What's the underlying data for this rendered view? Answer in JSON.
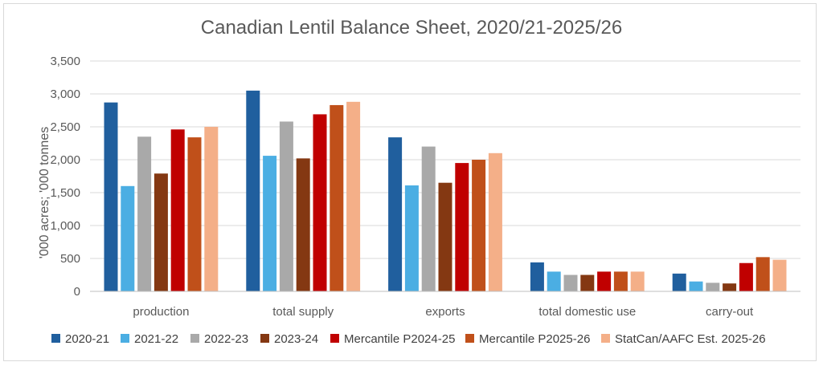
{
  "chart_data": {
    "type": "bar",
    "title": "Canadian Lentil Balance Sheet, 2020/21-2025/26",
    "ylabel": "'000 acres; '000 tonnes",
    "xlabel": "",
    "ylim": [
      0,
      3500
    ],
    "yticks": [
      "0",
      "500",
      "1,000",
      "1,500",
      "2,000",
      "2,500",
      "3,000",
      "3,500"
    ],
    "ytick_values": [
      0,
      500,
      1000,
      1500,
      2000,
      2500,
      3000,
      3500
    ],
    "grid": true,
    "legend_position": "bottom",
    "categories": [
      "production",
      "total supply",
      "exports",
      "total domestic use",
      "carry-out"
    ],
    "series": [
      {
        "name": "2020-21",
        "color": "#205F9E",
        "values": [
          2870,
          3050,
          2340,
          440,
          270
        ]
      },
      {
        "name": "2021-22",
        "color": "#4BAEE3",
        "values": [
          1600,
          2060,
          1610,
          300,
          150
        ]
      },
      {
        "name": "2022-23",
        "color": "#A9A9A9",
        "values": [
          2350,
          2580,
          2200,
          250,
          130
        ]
      },
      {
        "name": "2023-24",
        "color": "#843812",
        "values": [
          1790,
          2020,
          1650,
          250,
          120
        ]
      },
      {
        "name": "Mercantile P2024-25",
        "color": "#C00000",
        "values": [
          2460,
          2690,
          1950,
          300,
          430
        ]
      },
      {
        "name": "Mercantile P2025-26",
        "color": "#C0501A",
        "values": [
          2340,
          2830,
          2000,
          300,
          520
        ]
      },
      {
        "name": "StatCan/AAFC Est. 2025-26",
        "color": "#F4AF88",
        "values": [
          2500,
          2880,
          2100,
          300,
          480
        ]
      }
    ]
  }
}
